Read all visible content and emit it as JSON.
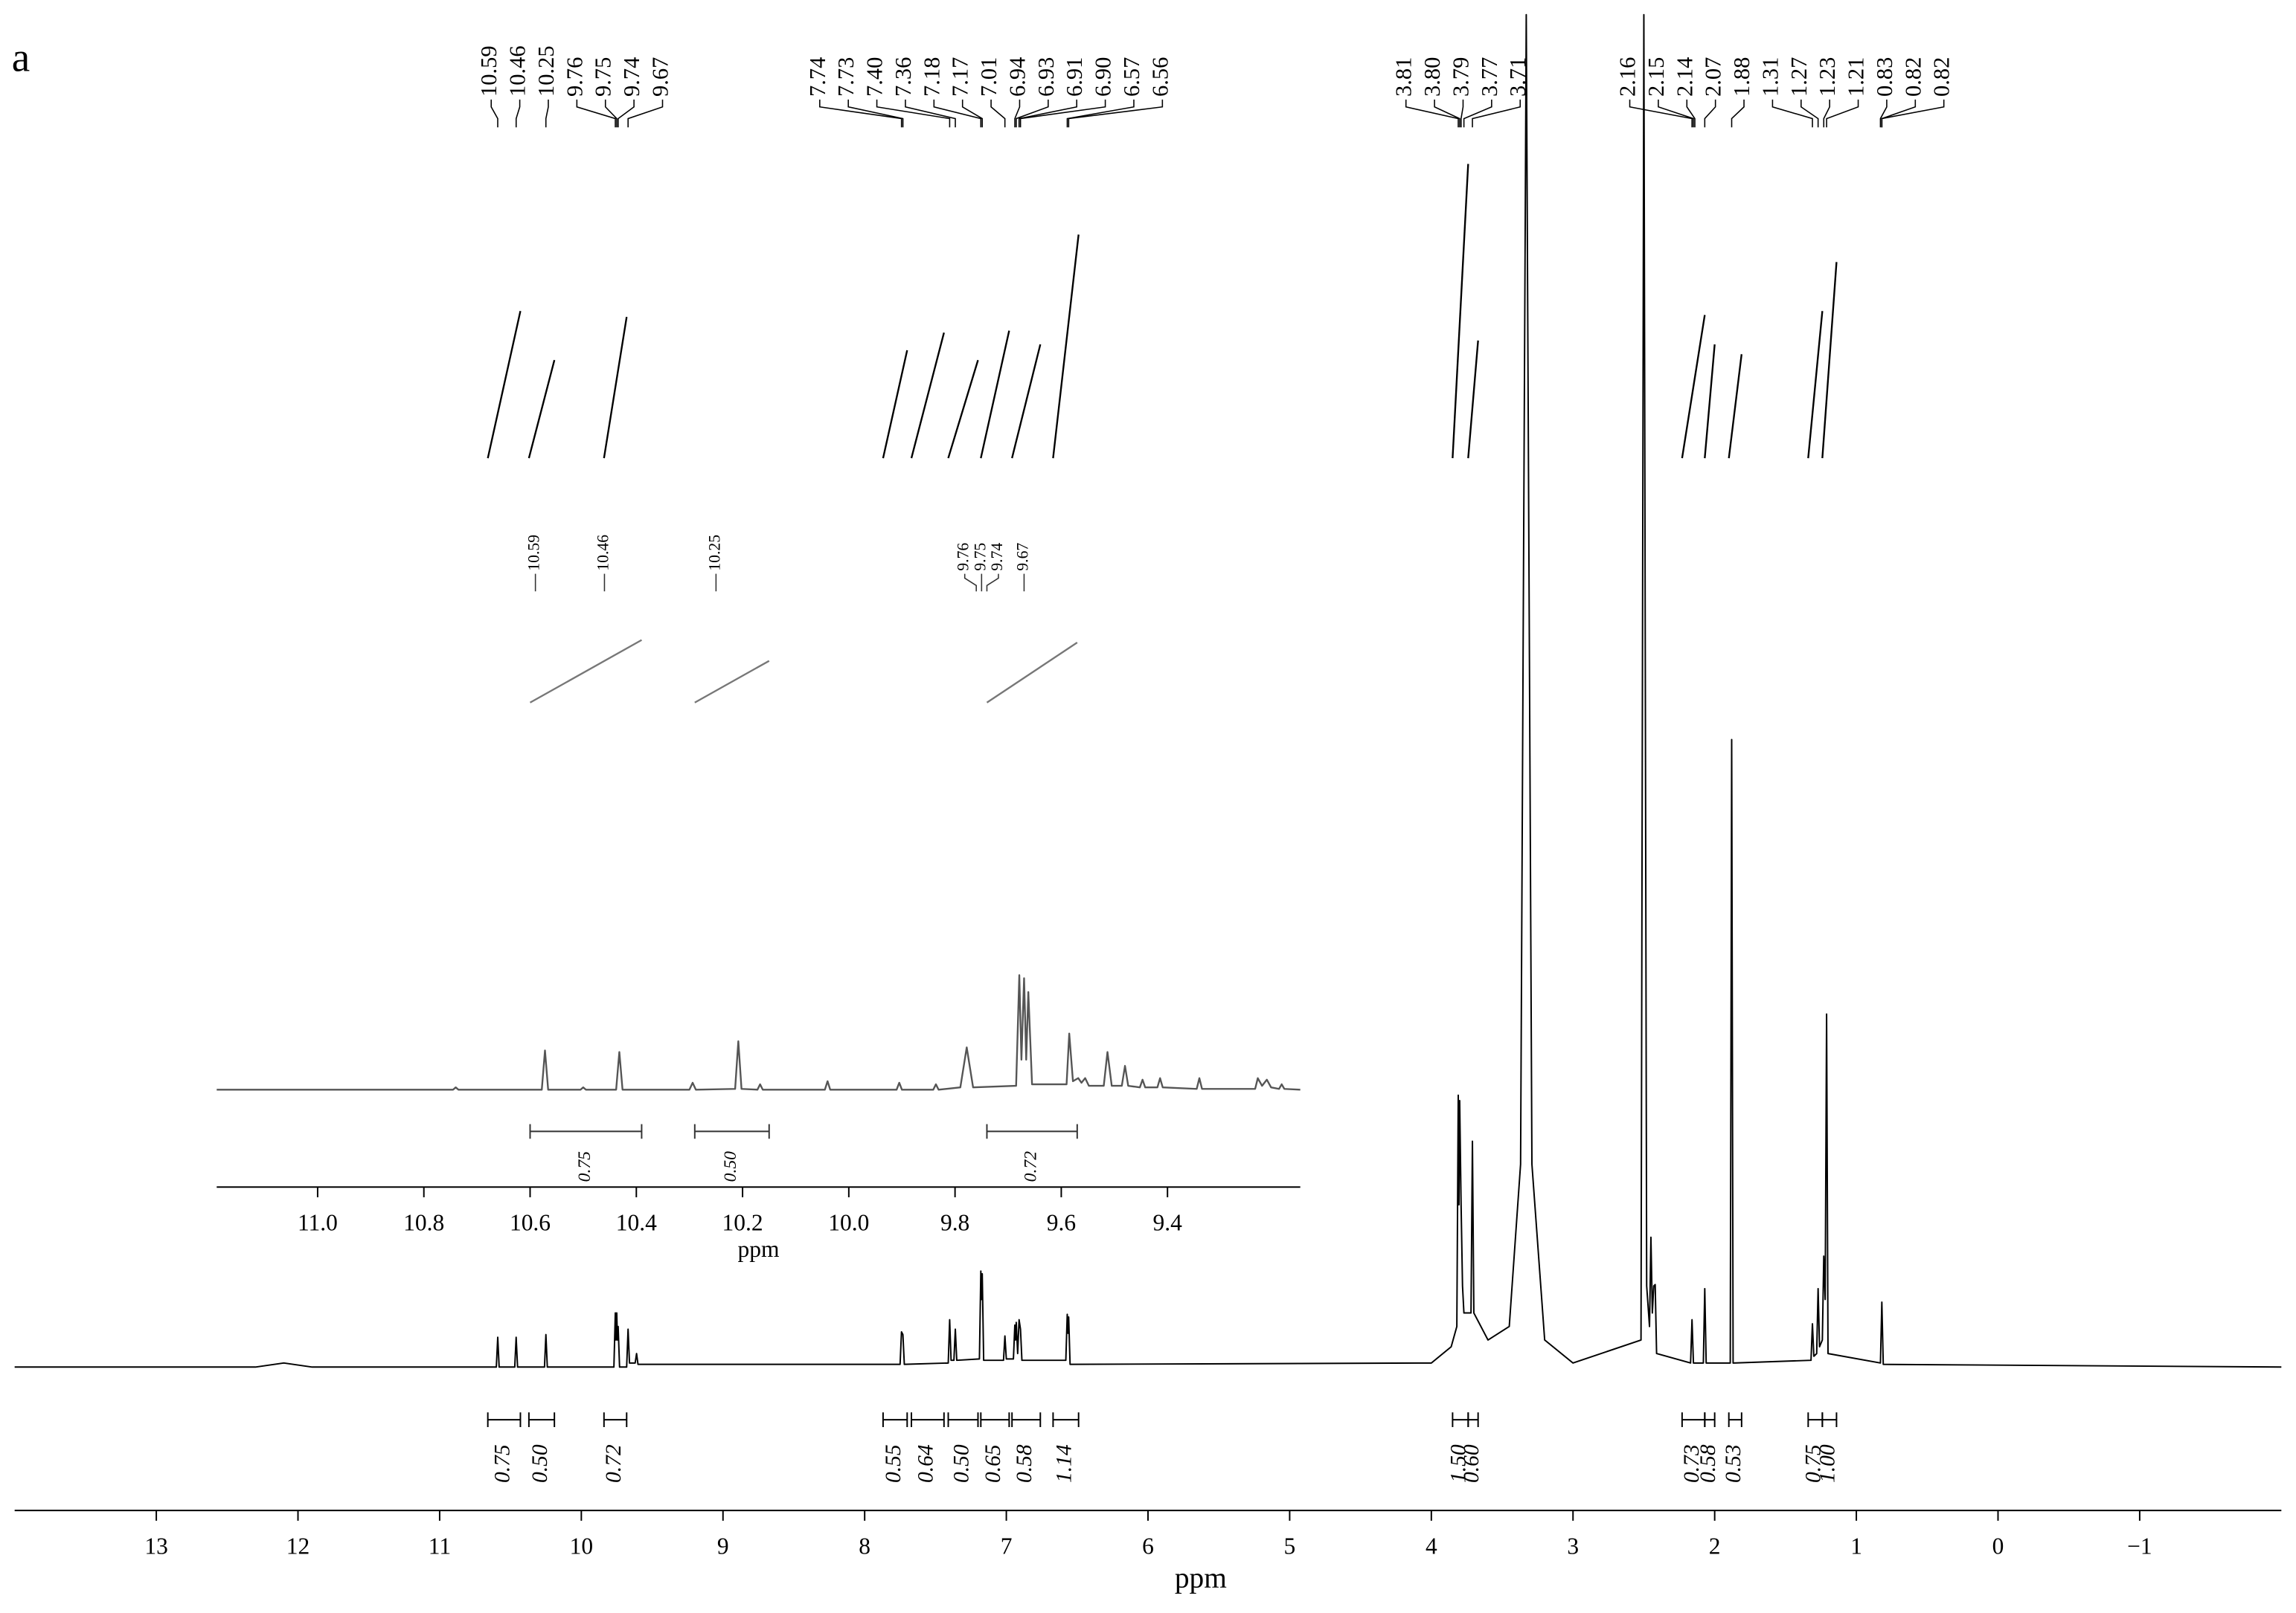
{
  "panel_label": "a",
  "chart_data": [
    {
      "type": "nmr",
      "xlabel": "ppm",
      "xlim": [
        14,
        -2
      ],
      "xticks": [
        13,
        12,
        11,
        10,
        9,
        8,
        7,
        6,
        5,
        4,
        3,
        2,
        1,
        0,
        {
          "value": -1,
          "label": "−1"
        }
      ],
      "ylim": [
        0,
        100
      ],
      "color": "#000000",
      "x": [
        14,
        12.3,
        12.1,
        11.9,
        10.6,
        10.59,
        10.58,
        10.47,
        10.46,
        10.45,
        10.26,
        10.25,
        10.24,
        9.77,
        9.76,
        9.755,
        9.75,
        9.745,
        9.74,
        9.73,
        9.68,
        9.67,
        9.66,
        9.62,
        9.61,
        9.6,
        7.75,
        7.74,
        7.73,
        7.72,
        7.41,
        7.4,
        7.39,
        7.37,
        7.36,
        7.35,
        7.19,
        7.18,
        7.175,
        7.17,
        7.16,
        7.02,
        7.01,
        7.0,
        6.95,
        6.94,
        6.935,
        6.93,
        6.92,
        6.91,
        6.9,
        6.89,
        6.58,
        6.57,
        6.565,
        6.56,
        6.55,
        4.0,
        3.86,
        3.82,
        3.81,
        3.805,
        3.8,
        3.79,
        3.78,
        3.77,
        3.72,
        3.71,
        3.7,
        3.6,
        3.45,
        3.37,
        3.33,
        3.29,
        3.2,
        3.0,
        2.52,
        2.5,
        2.48,
        2.46,
        2.45,
        2.44,
        2.43,
        2.42,
        2.41,
        2.17,
        2.16,
        2.15,
        2.08,
        2.07,
        2.06,
        1.89,
        1.88,
        1.87,
        1.32,
        1.31,
        1.3,
        1.28,
        1.27,
        1.26,
        1.24,
        1.23,
        1.22,
        1.21,
        1.2,
        0.83,
        0.82,
        0.81,
        -2
      ],
      "values": [
        0,
        0,
        0.3,
        0,
        0,
        2.2,
        0,
        0,
        2.2,
        0,
        0,
        2.4,
        0,
        0,
        4,
        2,
        4,
        2,
        3,
        0,
        0,
        2.8,
        0.3,
        0.3,
        1,
        0.2,
        0.2,
        2.6,
        2.4,
        0.2,
        0.3,
        3.5,
        0.5,
        0.5,
        2.8,
        0.5,
        0.6,
        7.1,
        5,
        6.9,
        0.5,
        0.5,
        2.3,
        0.6,
        0.6,
        3.1,
        2,
        3.3,
        1,
        3.5,
        2.8,
        0.5,
        0.5,
        3.9,
        2.5,
        3.7,
        0.2,
        0.3,
        1.5,
        3,
        20.1,
        12,
        19.7,
        12,
        6,
        4,
        4,
        16.7,
        4,
        2,
        3,
        15,
        100,
        15,
        2,
        0.3,
        2,
        100,
        6,
        3,
        9.6,
        4,
        6,
        6.1,
        1,
        0.3,
        3.5,
        0.3,
        0.3,
        5.8,
        0.3,
        0.3,
        46.4,
        0.3,
        0.5,
        3.2,
        0.8,
        1,
        5.8,
        1.5,
        2,
        8.2,
        5,
        26.1,
        1,
        0.3,
        4.8,
        0.2,
        0
      ],
      "peak_labels": [
        10.59,
        10.46,
        10.25,
        9.76,
        9.75,
        9.74,
        9.67,
        7.74,
        7.73,
        {
          "value": 7.4,
          "label": "7.40"
        },
        7.36,
        7.18,
        7.17,
        7.01,
        6.94,
        6.93,
        6.91,
        {
          "value": 6.9,
          "label": "6.90"
        },
        6.57,
        6.56,
        3.81,
        {
          "value": 3.8,
          "label": "3.80"
        },
        3.79,
        3.77,
        3.71,
        2.16,
        2.15,
        2.14,
        2.07,
        1.88,
        1.31,
        1.27,
        1.23,
        1.21,
        0.83,
        0.82,
        0.82
      ],
      "integrals": [
        {
          "from": 10.66,
          "to": 10.43,
          "value": 0.75
        },
        {
          "from": 10.37,
          "to": 10.19,
          "value": 0.5,
          "label": "0.50"
        },
        {
          "from": 9.84,
          "to": 9.68,
          "value": 0.72
        },
        {
          "from": 7.87,
          "to": 7.7,
          "value": 0.55
        },
        {
          "from": 7.67,
          "to": 7.44,
          "value": 0.64
        },
        {
          "from": 7.41,
          "to": 7.2,
          "value": 0.5,
          "label": "0.50"
        },
        {
          "from": 7.18,
          "to": 6.98,
          "value": 0.65
        },
        {
          "from": 6.96,
          "to": 6.76,
          "value": 0.58
        },
        {
          "from": 6.67,
          "to": 6.49,
          "value": 1.14
        },
        {
          "from": 3.85,
          "to": 3.74,
          "value": 1.5,
          "label": "1.50"
        },
        {
          "from": 3.74,
          "to": 3.67,
          "value": 0.6,
          "label": "0.60"
        },
        {
          "from": 2.23,
          "to": 2.07,
          "value": 0.73
        },
        {
          "from": 2.07,
          "to": 2.0,
          "value": 0.58
        },
        {
          "from": 1.9,
          "to": 1.81,
          "value": 0.53
        },
        {
          "from": 1.34,
          "to": 1.24,
          "value": 0.75
        },
        {
          "from": 1.24,
          "to": 1.14,
          "value": 1,
          "label": "1.00"
        }
      ]
    },
    {
      "type": "nmr",
      "xlabel": "ppm",
      "xlim": [
        11.19,
        9.15
      ],
      "xticks": [
        {
          "value": 11,
          "label": "11.0"
        },
        10.8,
        10.6,
        10.4,
        10.2,
        {
          "value": 10,
          "label": "10.0"
        },
        9.8,
        9.6,
        9.4
      ],
      "ylim": [
        0,
        100
      ],
      "color": "#555555",
      "x": [
        11.19,
        10.745,
        10.74,
        10.735,
        10.578,
        10.572,
        10.566,
        10.505,
        10.5,
        10.495,
        10.438,
        10.432,
        10.426,
        10.3,
        10.294,
        10.288,
        10.214,
        10.208,
        10.202,
        10.172,
        10.167,
        10.162,
        10.045,
        10.04,
        10.035,
        9.91,
        9.905,
        9.9,
        9.841,
        9.836,
        9.831,
        9.79,
        9.778,
        9.766,
        9.685,
        9.679,
        9.675,
        9.67,
        9.666,
        9.662,
        9.655,
        9.59,
        9.585,
        9.578,
        9.568,
        9.562,
        9.555,
        9.548,
        9.52,
        9.513,
        9.505,
        9.486,
        9.48,
        9.474,
        9.452,
        9.447,
        9.442,
        9.419,
        9.414,
        9.409,
        9.345,
        9.34,
        9.335,
        9.235,
        9.23,
        9.222,
        9.213,
        9.205,
        9.19,
        9.185,
        9.18,
        9.15
      ],
      "values": [
        0.5,
        0.5,
        2,
        0.5,
        0.5,
        26,
        0.5,
        0.5,
        2,
        0.5,
        0.5,
        25,
        0.5,
        0.5,
        5,
        0.5,
        1,
        32,
        1,
        0.5,
        4,
        0.5,
        0.5,
        6,
        0.5,
        0.5,
        5,
        0.5,
        0.5,
        4,
        0.5,
        2,
        28,
        2,
        3,
        75,
        20,
        73,
        20,
        64,
        4,
        4,
        37,
        6,
        8,
        5,
        8,
        3,
        3,
        25,
        3,
        3,
        16,
        3,
        2,
        7,
        2,
        2,
        8,
        2,
        1,
        8,
        1,
        1,
        8,
        3,
        7,
        2,
        1,
        4,
        1,
        0.5
      ],
      "peak_labels": [
        10.59,
        10.46,
        10.25,
        9.76,
        9.75,
        9.74,
        9.67
      ],
      "integrals": [
        {
          "from": 10.6,
          "to": 10.39,
          "value": 0.75
        },
        {
          "from": 10.29,
          "to": 10.15,
          "value": 0.5,
          "label": "0.50"
        },
        {
          "from": 9.74,
          "to": 9.57,
          "value": 0.72
        }
      ]
    }
  ]
}
